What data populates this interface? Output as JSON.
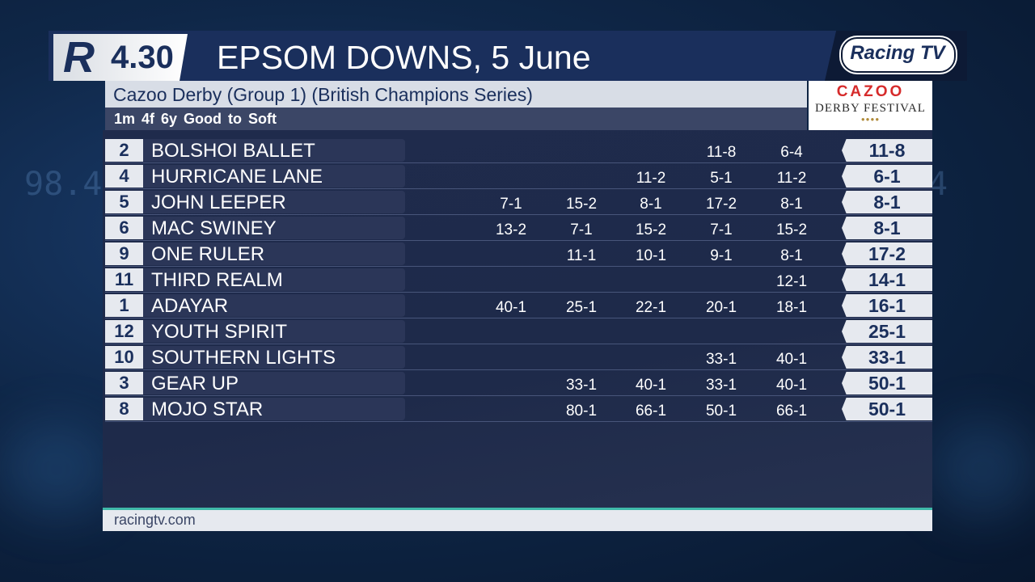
{
  "header": {
    "logo_letter": "R",
    "race_time": "4.30",
    "race_title": "EPSOM DOWNS, 5 June",
    "channel_logo": "Racing TV"
  },
  "race": {
    "name": "Cazoo Derby (Group 1) (British Champions Series)",
    "conditions": "1m 4f 6y   Good to Soft"
  },
  "sponsor": {
    "brand": "CAZOO",
    "event": "DERBY FESTIVAL",
    "dots": "●●●●"
  },
  "background": {
    "number_left": "98.4",
    "number_right": "4"
  },
  "runners": [
    {
      "num": "2",
      "name": "BOLSHOI BALLET",
      "odds": [
        "",
        "",
        "",
        "11-8",
        "6-4"
      ],
      "price": "11-8"
    },
    {
      "num": "4",
      "name": "HURRICANE LANE",
      "odds": [
        "",
        "",
        "11-2",
        "5-1",
        "11-2"
      ],
      "price": "6-1"
    },
    {
      "num": "5",
      "name": "JOHN LEEPER",
      "odds": [
        "7-1",
        "15-2",
        "8-1",
        "17-2",
        "8-1"
      ],
      "price": "8-1"
    },
    {
      "num": "6",
      "name": "MAC SWINEY",
      "odds": [
        "13-2",
        "7-1",
        "15-2",
        "7-1",
        "15-2"
      ],
      "price": "8-1"
    },
    {
      "num": "9",
      "name": "ONE RULER",
      "odds": [
        "",
        "11-1",
        "10-1",
        "9-1",
        "8-1"
      ],
      "price": "17-2"
    },
    {
      "num": "11",
      "name": "THIRD REALM",
      "odds": [
        "",
        "",
        "",
        "",
        "12-1"
      ],
      "price": "14-1"
    },
    {
      "num": "1",
      "name": "ADAYAR",
      "odds": [
        "40-1",
        "25-1",
        "22-1",
        "20-1",
        "18-1"
      ],
      "price": "16-1"
    },
    {
      "num": "12",
      "name": "YOUTH SPIRIT",
      "odds": [
        "",
        "",
        "",
        "",
        ""
      ],
      "price": "25-1"
    },
    {
      "num": "10",
      "name": "SOUTHERN LIGHTS",
      "odds": [
        "",
        "",
        "",
        "33-1",
        "40-1"
      ],
      "price": "33-1"
    },
    {
      "num": "3",
      "name": "GEAR UP",
      "odds": [
        "",
        "33-1",
        "40-1",
        "33-1",
        "40-1"
      ],
      "price": "50-1"
    },
    {
      "num": "8",
      "name": "MOJO STAR",
      "odds": [
        "",
        "80-1",
        "66-1",
        "50-1",
        "66-1"
      ],
      "price": "50-1"
    }
  ],
  "footer": {
    "url": "racingtv.com"
  },
  "colors": {
    "navy": "#1a2f5c",
    "panel": "#1f2b4c",
    "accent_teal": "#3fb9a9",
    "sponsor_red": "#d62b2b"
  }
}
